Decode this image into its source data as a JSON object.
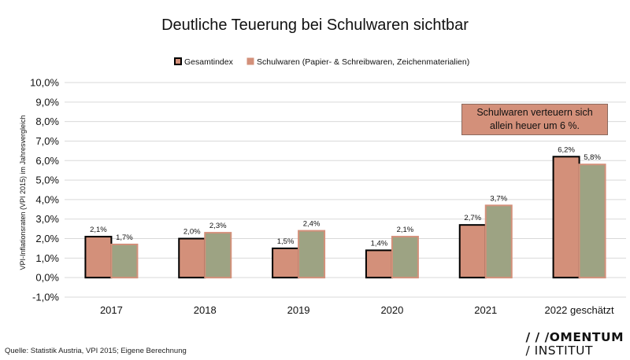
{
  "chart_data": {
    "type": "bar",
    "title": "Deutliche Teuerung bei Schulwaren sichtbar",
    "ylabel": "VPI-Inflationsraten (VPI 2015) im Jahresvergleich",
    "xlabel": "",
    "ylim": [
      -1.0,
      10.0
    ],
    "yticks": [
      "-1,0%",
      "0,0%",
      "1,0%",
      "2,0%",
      "3,0%",
      "4,0%",
      "5,0%",
      "6,0%",
      "7,0%",
      "8,0%",
      "9,0%",
      "10,0%"
    ],
    "ytick_values": [
      -1,
      0,
      1,
      2,
      3,
      4,
      5,
      6,
      7,
      8,
      9,
      10
    ],
    "grid": true,
    "legend_position": "top",
    "categories": [
      "2017",
      "2018",
      "2019",
      "2020",
      "2021",
      "2022 geschätzt"
    ],
    "series": [
      {
        "name": "Gesamtindex",
        "values": [
          2.1,
          2.0,
          1.5,
          1.4,
          2.7,
          6.2
        ],
        "labels": [
          "2,1%",
          "2,0%",
          "1,5%",
          "1,4%",
          "2,7%",
          "6,2%"
        ],
        "color": "#d3907a",
        "border": "#000000"
      },
      {
        "name": "Schulwaren (Papier- & Schreibwaren, Zeichenmaterialien)",
        "values": [
          1.7,
          2.3,
          2.4,
          2.1,
          3.7,
          5.8
        ],
        "labels": [
          "1,7%",
          "2,3%",
          "2,4%",
          "2,1%",
          "3,7%",
          "5,8%"
        ],
        "color": "#9da383",
        "border": "#d3907a"
      }
    ],
    "annotation": "Schulwaren verteuern sich allein heuer um 6 %."
  },
  "source": "Quelle: Statistik Austria, VPI 2015; Eigene Berechnung",
  "logo": {
    "line1": "/ / /OMENTUM",
    "line2": "/ INSTITUT"
  }
}
